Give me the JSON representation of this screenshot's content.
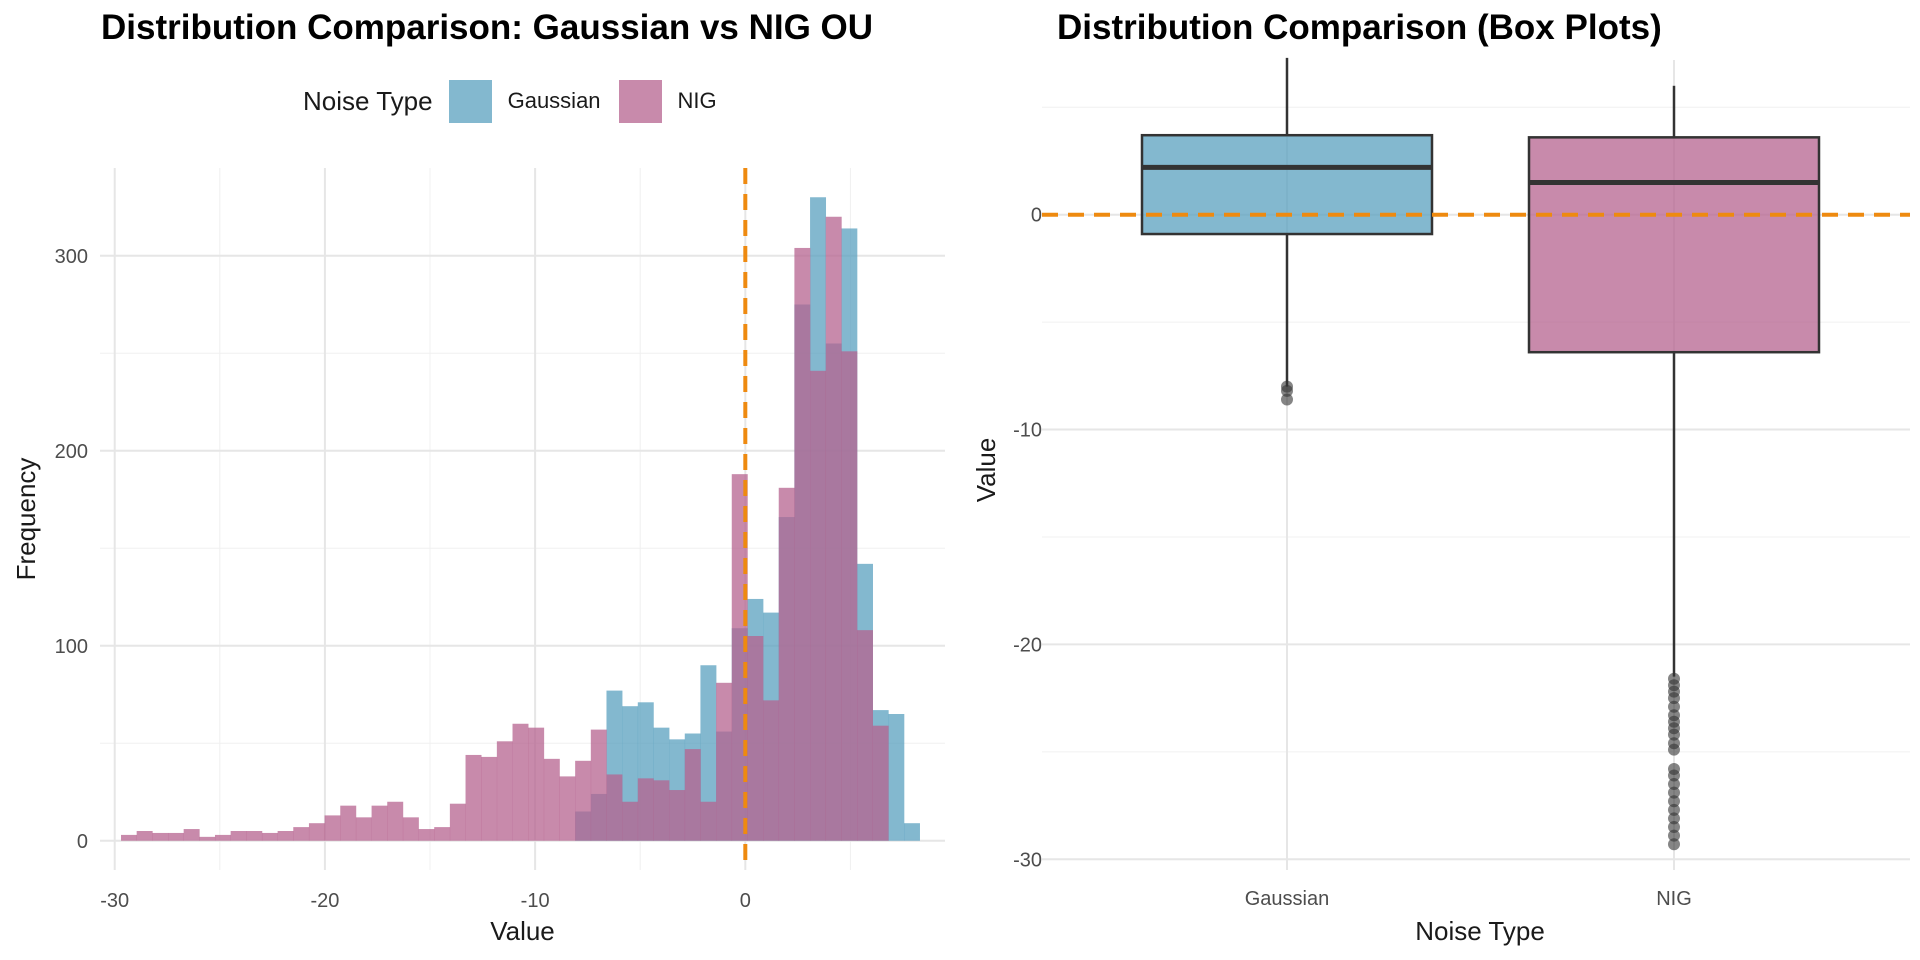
{
  "colors": {
    "gaussian": "#5aa0bf",
    "nig": "#b5638f",
    "zero_line": "#ee8a10",
    "box_outline": "#333333"
  },
  "chart_data": [
    {
      "type": "histogram",
      "title": "Distribution Comparison: Gaussian vs NIG OU",
      "xlabel": "Value",
      "ylabel": "Frequency",
      "xlim": [
        -30.7,
        9.5
      ],
      "ylim": [
        -15,
        345
      ],
      "xticks": [
        -30,
        -20,
        -10,
        0
      ],
      "yticks": [
        0,
        100,
        200,
        300
      ],
      "xtick_labels": [
        "-30",
        "-20",
        "-10",
        "0"
      ],
      "ytick_labels": [
        "0",
        "100",
        "200",
        "300"
      ],
      "vline": 0,
      "legend": {
        "title": "Noise Type",
        "entries": [
          "Gaussian",
          "NIG"
        ],
        "position": "top"
      },
      "bin_start": -29.7,
      "bin_width": 0.745,
      "series": [
        {
          "name": "Gaussian",
          "counts": [
            0,
            0,
            0,
            0,
            0,
            0,
            0,
            0,
            0,
            0,
            0,
            0,
            0,
            0,
            0,
            0,
            0,
            0,
            0,
            0,
            0,
            0,
            0,
            0,
            0,
            0,
            0,
            0,
            0,
            15,
            24,
            77,
            69,
            71,
            58,
            52,
            55,
            90,
            56,
            109,
            124,
            117,
            166,
            275,
            330,
            255,
            314,
            142,
            67,
            65,
            9
          ]
        },
        {
          "name": "NIG",
          "counts": [
            3,
            5,
            4,
            4,
            6,
            2,
            3,
            5,
            5,
            4,
            5,
            7,
            9,
            13,
            18,
            12,
            18,
            20,
            12,
            6,
            7,
            19,
            44,
            43,
            51,
            60,
            58,
            42,
            33,
            41,
            57,
            34,
            20,
            32,
            31,
            26,
            47,
            20,
            81,
            188,
            105,
            72,
            181,
            304,
            241,
            320,
            251,
            108,
            59,
            0,
            0
          ]
        }
      ]
    },
    {
      "type": "box",
      "title": "Distribution Comparison (Box Plots)",
      "xlabel": "Noise Type",
      "ylabel": "Value",
      "ylim": [
        -30.5,
        7.2
      ],
      "yticks": [
        0,
        -10,
        -20,
        -30
      ],
      "ytick_labels": [
        "0",
        "-10",
        "-20",
        "-30"
      ],
      "hline": 0,
      "categories": [
        "Gaussian",
        "NIG"
      ],
      "boxes": [
        {
          "name": "Gaussian",
          "whisker_low": -8.0,
          "q1": -0.9,
          "median": 2.2,
          "q3": 3.7,
          "whisker_high": 7.3,
          "outliers": [
            -8.0,
            -8.2,
            -8.6
          ]
        },
        {
          "name": "NIG",
          "whisker_low": -21.5,
          "q1": -6.4,
          "median": 1.5,
          "q3": 3.6,
          "whisker_high": 6.0,
          "outliers": [
            -21.6,
            -21.9,
            -22.2,
            -22.5,
            -22.9,
            -23.3,
            -23.6,
            -23.9,
            -24.2,
            -24.6,
            -24.9,
            -25.8,
            -26.1,
            -26.5,
            -26.9,
            -27.3,
            -27.7,
            -28.1,
            -28.5,
            -28.9,
            -29.3
          ]
        }
      ]
    }
  ]
}
